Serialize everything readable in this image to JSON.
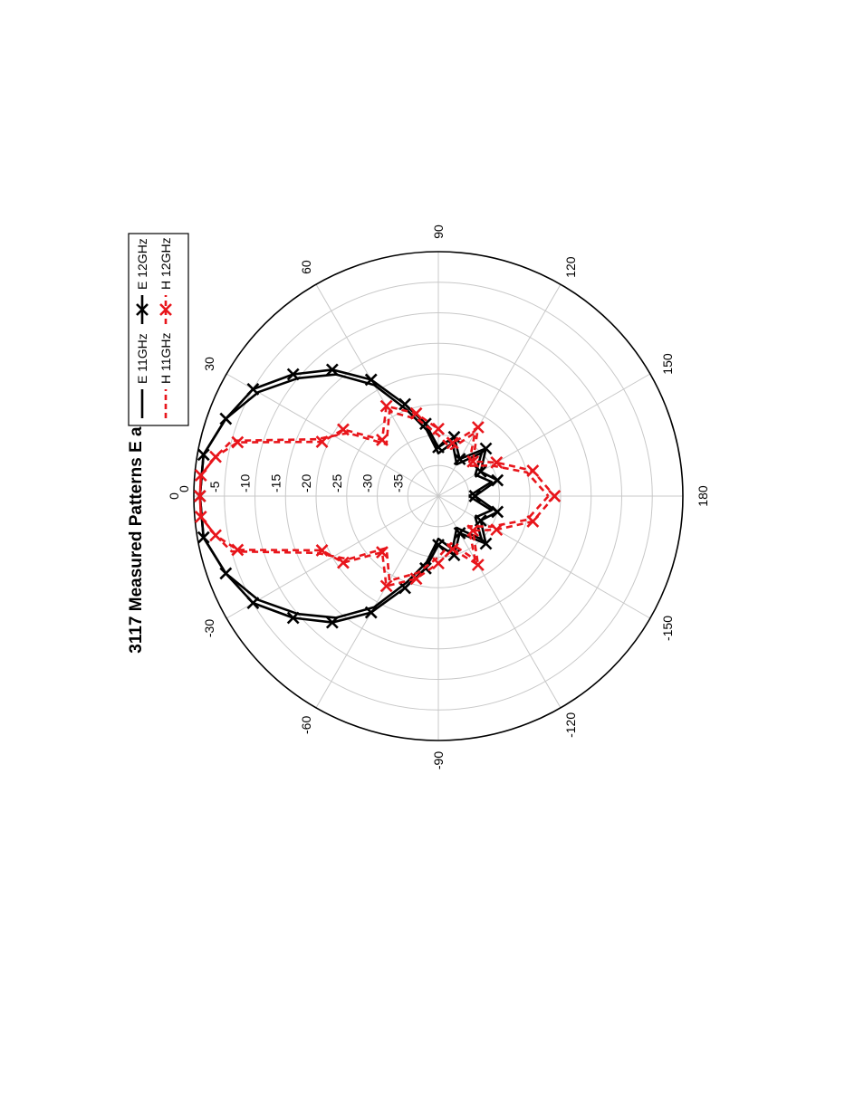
{
  "chart_data": {
    "type": "polar",
    "title": "3117 Measured Patterns E and H plane",
    "radial_unit": "dB",
    "radial_range": [
      -40,
      0
    ],
    "radial_ticks": [
      "0",
      "-5",
      "-10",
      "-15",
      "-20",
      "-25",
      "-30",
      "-35"
    ],
    "angle_ticks": [
      "0",
      "30",
      "60",
      "90",
      "120",
      "150",
      "180",
      "-150",
      "-120",
      "-90",
      "-60",
      "-30"
    ],
    "grid": true,
    "orientation": "figure rotated 90 degrees counter-clockwise on page",
    "legend_position": "top-right (rotated)",
    "colors": {
      "black": "#000000",
      "red": "#e8151b",
      "grid": "#c8c8c8"
    },
    "legend": [
      {
        "label": "E 11GHz",
        "color": "#000000",
        "style": "solid",
        "marker": "none"
      },
      {
        "label": "E 12GHz",
        "color": "#000000",
        "style": "solid",
        "marker": "x"
      },
      {
        "label": "H 11GHz",
        "color": "#e8151b",
        "style": "dashed",
        "marker": "none"
      },
      {
        "label": "H 12GHz",
        "color": "#e8151b",
        "style": "dashed",
        "marker": "x"
      }
    ],
    "series": [
      {
        "name": "E 11GHz",
        "angles_deg": [
          -180,
          -165,
          -150,
          -135,
          -120,
          -105,
          -90,
          -80,
          -70,
          -60,
          -50,
          -40,
          -30,
          -20,
          -10,
          0,
          10,
          20,
          30,
          40,
          50,
          60,
          70,
          80,
          90,
          105,
          120,
          135,
          150,
          165,
          180
        ],
        "values_db": [
          -35,
          -31,
          -33,
          -30,
          -34,
          -31,
          -33,
          -29,
          -25,
          -19,
          -14,
          -10,
          -6,
          -3,
          -1,
          -1,
          -1,
          -3,
          -6,
          -10,
          -14,
          -19,
          -25,
          -29,
          -33,
          -31,
          -34,
          -30,
          -33,
          -31,
          -35
        ]
      },
      {
        "name": "E 12GHz",
        "angles_deg": [
          -180,
          -165,
          -150,
          -135,
          -120,
          -105,
          -90,
          -80,
          -70,
          -60,
          -50,
          -40,
          -30,
          -20,
          -10,
          0,
          10,
          20,
          30,
          40,
          50,
          60,
          70,
          80,
          90,
          105,
          120,
          135,
          150,
          165,
          180
        ],
        "values_db": [
          -34,
          -30,
          -32,
          -29,
          -33,
          -30,
          -32,
          -28,
          -24,
          -18,
          -13,
          -9,
          -5,
          -3,
          -1,
          -1,
          -1,
          -3,
          -5,
          -9,
          -13,
          -18,
          -24,
          -28,
          -32,
          -30,
          -33,
          -29,
          -32,
          -30,
          -34
        ]
      },
      {
        "name": "H 11GHz",
        "angles_deg": [
          -180,
          -165,
          -150,
          -135,
          -120,
          -105,
          -90,
          -75,
          -60,
          -45,
          -35,
          -25,
          -15,
          -10,
          -5,
          0,
          5,
          10,
          15,
          25,
          35,
          45,
          60,
          75,
          90,
          105,
          120,
          135,
          150,
          165,
          180
        ],
        "values_db": [
          -22,
          -25,
          -30,
          -33,
          -28,
          -32,
          -30,
          -27,
          -24,
          -28,
          -22,
          -18,
          -5,
          -3,
          -1,
          -1,
          -1,
          -3,
          -5,
          -18,
          -22,
          -28,
          -24,
          -27,
          -30,
          -32,
          -28,
          -33,
          -30,
          -25,
          -22
        ]
      },
      {
        "name": "H 12GHz",
        "angles_deg": [
          -180,
          -165,
          -150,
          -135,
          -120,
          -105,
          -90,
          -75,
          -60,
          -45,
          -35,
          -25,
          -15,
          -10,
          -5,
          0,
          5,
          10,
          15,
          25,
          35,
          45,
          60,
          75,
          90,
          105,
          120,
          135,
          150,
          165,
          180
        ],
        "values_db": [
          -21,
          -24,
          -29,
          -32,
          -27,
          -31,
          -29,
          -26,
          -23,
          -27,
          -21,
          -19,
          -6,
          -3,
          -1,
          -1,
          -1,
          -3,
          -6,
          -19,
          -21,
          -27,
          -23,
          -26,
          -29,
          -31,
          -27,
          -32,
          -29,
          -24,
          -21
        ]
      }
    ]
  }
}
